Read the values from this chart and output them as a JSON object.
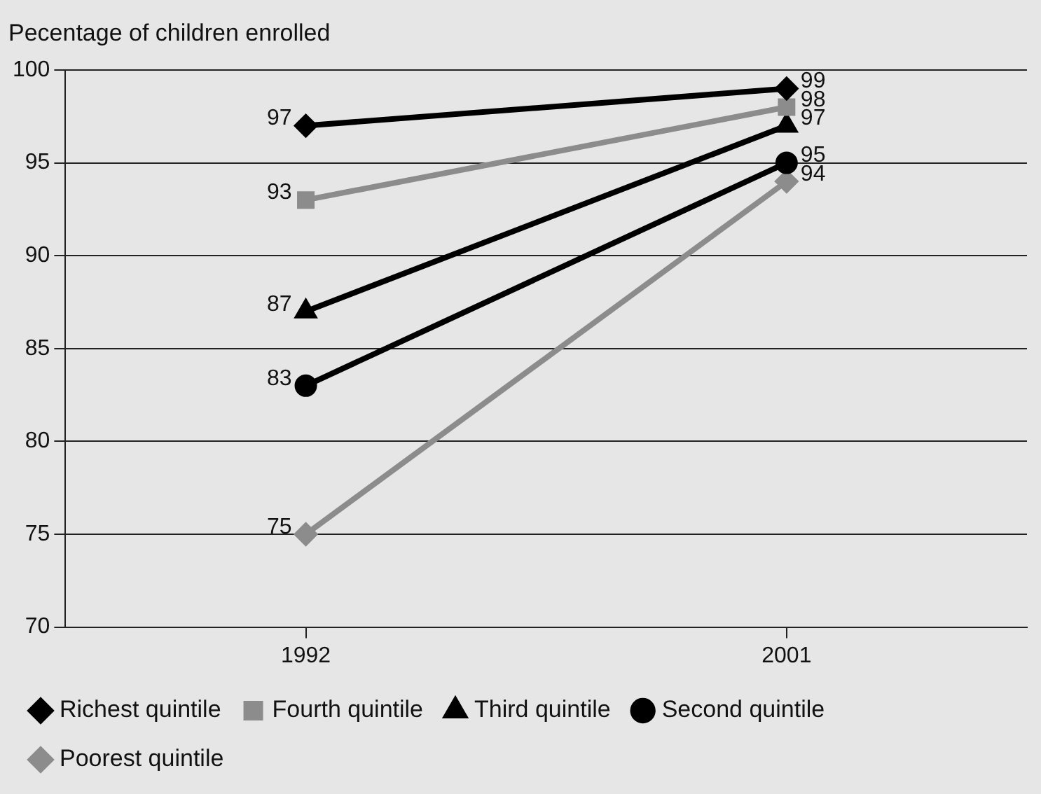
{
  "chart_data": {
    "type": "line",
    "ylabel": "Pecentage of children enrolled",
    "categories": [
      "1992",
      "2001"
    ],
    "series": [
      {
        "name": "Richest quintile",
        "color": "#000000",
        "marker": "diamond",
        "values": [
          97,
          99
        ]
      },
      {
        "name": "Fourth quintile",
        "color": "#8c8c8c",
        "marker": "square",
        "values": [
          93,
          98
        ]
      },
      {
        "name": "Third quintile",
        "color": "#000000",
        "marker": "triangle",
        "values": [
          87,
          97
        ]
      },
      {
        "name": "Second quintile",
        "color": "#000000",
        "marker": "circle",
        "values": [
          83,
          95
        ]
      },
      {
        "name": "Poorest quintile",
        "color": "#8c8c8c",
        "marker": "diamond",
        "values": [
          75,
          94
        ]
      }
    ],
    "ylim": [
      70,
      100
    ],
    "yticks": [
      70,
      75,
      80,
      85,
      90,
      95,
      100
    ],
    "grid": "y",
    "legend": "bottom",
    "data_labels": true
  }
}
